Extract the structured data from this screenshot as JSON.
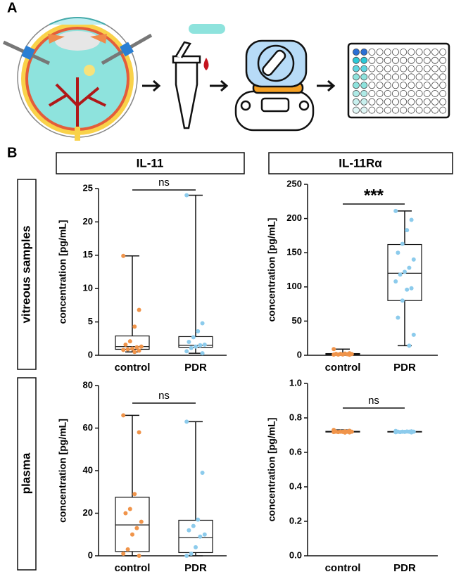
{
  "figure": {
    "panel_a": "A",
    "panel_b": "B",
    "columns": [
      "IL-11",
      "IL-11Rα"
    ],
    "rows": [
      "vitreous samples",
      "plasma"
    ]
  },
  "chart_data": [
    {
      "type": "box",
      "y_label": "concentration [pg/mL]",
      "significance": "ns",
      "categories": [
        "control",
        "PDR"
      ],
      "ylim": [
        0,
        25
      ],
      "yticks": [
        0,
        5,
        10,
        15,
        20,
        25
      ],
      "boxes": [
        {
          "color": "#f0944a",
          "min": 0.5,
          "q1": 0.9,
          "median": 1.3,
          "q3": 2.9,
          "max": 14.9,
          "points": [
            14.9,
            6.8,
            4.3,
            2.1,
            1.6,
            1.3,
            1.2,
            1.0,
            0.9,
            0.8,
            0.7,
            0.5
          ]
        },
        {
          "color": "#8ccbec",
          "min": 0.3,
          "q1": 1.2,
          "median": 1.5,
          "q3": 2.8,
          "max": 24,
          "points": [
            24,
            4.8,
            3.6,
            2.7,
            2.0,
            1.6,
            1.5,
            1.3,
            1.1,
            0.6,
            0.3
          ]
        }
      ]
    },
    {
      "type": "box",
      "y_label": "concentration [pg/mL]",
      "significance": "***",
      "categories": [
        "control",
        "PDR"
      ],
      "ylim": [
        0,
        250
      ],
      "yticks": [
        0,
        50,
        100,
        150,
        200,
        250
      ],
      "boxes": [
        {
          "color": "#f0944a",
          "min": 0.8,
          "q1": 1.2,
          "median": 2,
          "q3": 2.5,
          "max": 9,
          "points": [
            9,
            3,
            2.5,
            2,
            2,
            1.8,
            1.5,
            1.2,
            1,
            1,
            0.8
          ]
        },
        {
          "color": "#8ccbec",
          "min": 14,
          "q1": 80,
          "median": 120,
          "q3": 162,
          "max": 211,
          "points": [
            211,
            198,
            183,
            163,
            150,
            140,
            128,
            122,
            118,
            108,
            98,
            96,
            80,
            55,
            30,
            14
          ]
        }
      ]
    },
    {
      "type": "box",
      "y_label": "concentration [pg/mL]",
      "significance": "ns",
      "categories": [
        "control",
        "PDR"
      ],
      "ylim": [
        0,
        80
      ],
      "yticks": [
        0,
        20,
        40,
        60,
        80
      ],
      "boxes": [
        {
          "color": "#f0944a",
          "min": 0,
          "q1": 2,
          "median": 14.5,
          "q3": 27.5,
          "max": 66,
          "points": [
            66,
            58,
            29,
            22,
            20,
            16,
            13,
            10,
            3,
            1,
            0
          ]
        },
        {
          "color": "#8ccbec",
          "min": 0,
          "q1": 1.5,
          "median": 8.5,
          "q3": 16.7,
          "max": 63,
          "points": [
            63,
            39,
            17,
            14,
            12,
            10,
            9,
            4,
            1,
            0
          ]
        }
      ]
    },
    {
      "type": "box",
      "y_label": "concentration [pg/mL]",
      "significance": "ns",
      "categories": [
        "control",
        "PDR"
      ],
      "ylim": [
        0,
        1.0
      ],
      "yticks": [
        {
          "value": 0,
          "label": "0.0"
        },
        0.2,
        0.4,
        0.6,
        0.8,
        {
          "value": 1,
          "label": "1.0"
        }
      ],
      "boxes": [
        {
          "color": "#f0944a",
          "min": 0.715,
          "q1": 0.718,
          "median": 0.72,
          "q3": 0.722,
          "max": 0.73,
          "points": [
            0.73,
            0.725,
            0.722,
            0.72,
            0.72,
            0.72,
            0.72,
            0.719,
            0.718,
            0.718,
            0.716,
            0.715
          ]
        },
        {
          "color": "#8ccbec",
          "min": 0.716,
          "q1": 0.718,
          "median": 0.72,
          "q3": 0.721,
          "max": 0.724,
          "points": [
            0.724,
            0.722,
            0.721,
            0.72,
            0.72,
            0.72,
            0.72,
            0.719,
            0.718,
            0.717,
            0.716
          ]
        }
      ]
    }
  ]
}
